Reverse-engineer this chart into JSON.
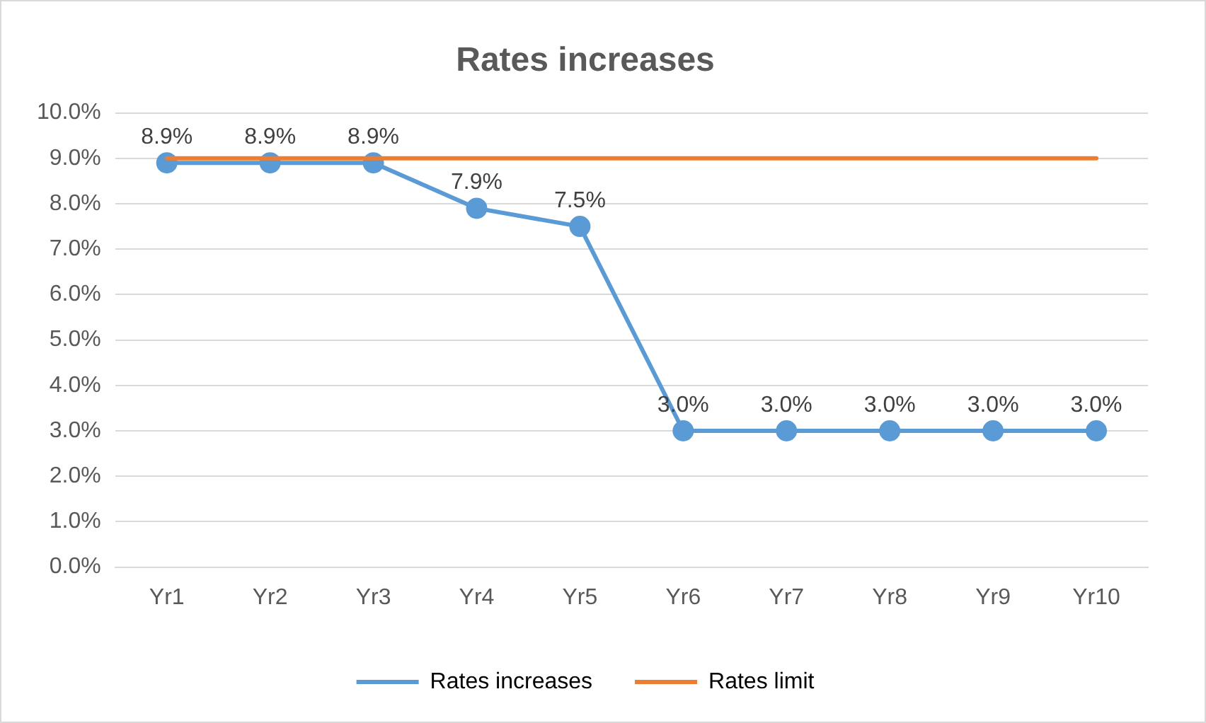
{
  "chart_data": {
    "type": "line",
    "title": "Rates increases",
    "categories": [
      "Yr1",
      "Yr2",
      "Yr3",
      "Yr4",
      "Yr5",
      "Yr6",
      "Yr7",
      "Yr8",
      "Yr9",
      "Yr10"
    ],
    "series": [
      {
        "name": "Rates increases",
        "color": "#5b9bd5",
        "marker": "circle",
        "values": [
          8.9,
          8.9,
          8.9,
          7.9,
          7.5,
          3.0,
          3.0,
          3.0,
          3.0,
          3.0
        ],
        "value_labels": [
          "8.9%",
          "8.9%",
          "8.9%",
          "7.9%",
          "7.5%",
          "3.0%",
          "3.0%",
          "3.0%",
          "3.0%",
          "3.0%"
        ]
      },
      {
        "name": "Rates limit",
        "color": "#ed7d31",
        "marker": "none",
        "values": [
          9,
          9,
          9,
          9,
          9,
          9,
          9,
          9,
          9,
          9
        ]
      }
    ],
    "ylim": [
      0,
      10
    ],
    "yticks": [
      {
        "value": 0,
        "label": "0.0%"
      },
      {
        "value": 1,
        "label": "1.0%"
      },
      {
        "value": 2,
        "label": "2.0%"
      },
      {
        "value": 3,
        "label": "3.0%"
      },
      {
        "value": 4,
        "label": "4.0%"
      },
      {
        "value": 5,
        "label": "5.0%"
      },
      {
        "value": 6,
        "label": "6.0%"
      },
      {
        "value": 7,
        "label": "7.0%"
      },
      {
        "value": 8,
        "label": "8.0%"
      },
      {
        "value": 9,
        "label": "9.0%"
      },
      {
        "value": 10,
        "label": "10.0%"
      }
    ],
    "grid": "y",
    "legend": "bottom",
    "line_style": "solid"
  }
}
